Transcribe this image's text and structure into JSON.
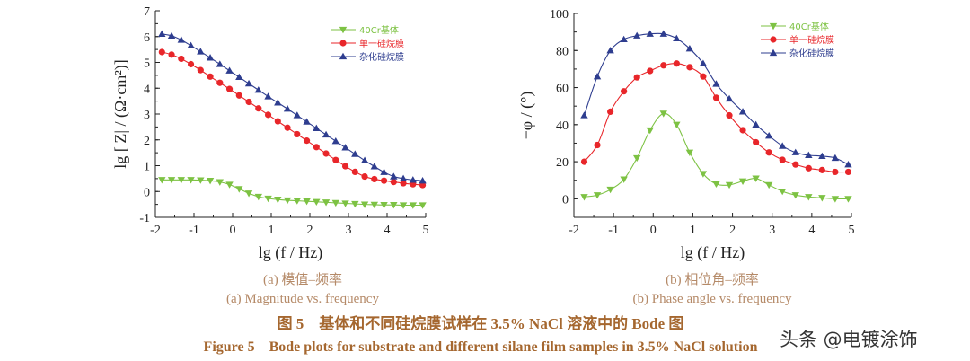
{
  "chart_data": [
    {
      "type": "line",
      "xlabel": "lg (f / Hz)",
      "ylabel": "lg [|Z| / (Ω·cm²)]",
      "xlim": [
        -2,
        5
      ],
      "ylim": [
        -1,
        7
      ],
      "xticks": [
        "-2",
        "-1",
        "0",
        "1",
        "2",
        "3",
        "4",
        "5"
      ],
      "yticks": [
        "-1",
        "0",
        "1",
        "2",
        "3",
        "4",
        "5",
        "6",
        "7"
      ],
      "legend_position": "top-right",
      "caption_cn": "(a)  模值–频率",
      "caption_en": "(a) Magnitude vs. frequency",
      "x": [
        -1.83,
        -1.58,
        -1.33,
        -1.08,
        -0.83,
        -0.58,
        -0.33,
        -0.08,
        0.17,
        0.42,
        0.67,
        0.92,
        1.17,
        1.42,
        1.67,
        1.92,
        2.17,
        2.42,
        2.67,
        2.92,
        3.17,
        3.42,
        3.67,
        3.92,
        4.17,
        4.42,
        4.67,
        4.92
      ],
      "series": [
        {
          "name": "40Cr基体",
          "color": "#7dc243",
          "marker": "triangle-down",
          "values": [
            0.45,
            0.45,
            0.45,
            0.45,
            0.44,
            0.42,
            0.37,
            0.27,
            0.1,
            -0.07,
            -0.2,
            -0.27,
            -0.31,
            -0.34,
            -0.36,
            -0.38,
            -0.4,
            -0.42,
            -0.44,
            -0.46,
            -0.48,
            -0.5,
            -0.51,
            -0.52,
            -0.52,
            -0.53,
            -0.53,
            -0.53
          ]
        },
        {
          "name": "单一硅烷膜",
          "color": "#e8262a",
          "marker": "circle",
          "values": [
            5.4,
            5.3,
            5.14,
            4.93,
            4.7,
            4.45,
            4.21,
            3.97,
            3.72,
            3.47,
            3.22,
            2.97,
            2.72,
            2.47,
            2.22,
            1.97,
            1.72,
            1.47,
            1.22,
            0.98,
            0.76,
            0.58,
            0.48,
            0.42,
            0.37,
            0.32,
            0.28,
            0.25
          ]
        },
        {
          "name": "杂化硅烷膜",
          "color": "#2e3d8f",
          "marker": "triangle-up",
          "values": [
            6.1,
            6.03,
            5.87,
            5.65,
            5.42,
            5.18,
            4.93,
            4.68,
            4.43,
            4.18,
            3.93,
            3.68,
            3.44,
            3.2,
            2.95,
            2.7,
            2.45,
            2.2,
            1.95,
            1.7,
            1.45,
            1.2,
            0.97,
            0.75,
            0.58,
            0.5,
            0.45,
            0.42
          ]
        }
      ]
    },
    {
      "type": "line",
      "xlabel": "lg (f / Hz)",
      "ylabel": "−φ / (°)",
      "xlim": [
        -2,
        5
      ],
      "ylim": [
        -10,
        100
      ],
      "xticks": [
        "-2",
        "-1",
        "0",
        "1",
        "2",
        "3",
        "4",
        "5"
      ],
      "yticks": [
        "0",
        "20",
        "40",
        "60",
        "80",
        "100"
      ],
      "legend_position": "top-right",
      "caption_cn": "(b)  相位角–频率",
      "caption_en": "(b) Phase angle vs. frequency",
      "x": [
        -1.74,
        -1.41,
        -1.08,
        -0.74,
        -0.41,
        -0.08,
        0.26,
        0.59,
        0.92,
        1.26,
        1.59,
        1.92,
        2.26,
        2.59,
        2.92,
        3.26,
        3.59,
        3.92,
        4.26,
        4.59,
        4.92
      ],
      "series": [
        {
          "name": "40Cr基体",
          "color": "#7dc243",
          "marker": "triangle-down",
          "values": [
            1,
            2,
            5,
            10.5,
            22,
            37,
            46,
            40,
            25,
            13.5,
            8,
            7.5,
            9.5,
            11,
            7.5,
            4,
            2,
            1,
            0.5,
            0,
            0
          ]
        },
        {
          "name": "单一硅烷膜",
          "color": "#e8262a",
          "marker": "circle",
          "values": [
            20,
            29,
            47,
            58,
            65.5,
            69,
            72,
            73,
            71,
            66,
            54.5,
            45,
            37,
            30.5,
            25,
            21,
            18.5,
            16.5,
            15.5,
            14.5,
            14.5
          ]
        },
        {
          "name": "杂化硅烷膜",
          "color": "#2e3d8f",
          "marker": "triangle-up",
          "values": [
            45,
            66,
            80,
            86,
            88,
            89,
            89,
            86.5,
            81,
            73,
            62,
            54,
            47,
            40,
            34,
            28.5,
            25,
            23.5,
            23,
            22,
            18.5
          ]
        }
      ]
    }
  ],
  "figure": {
    "title_cn": "图 5　基体和不同硅烷膜试样在 3.5% NaCl 溶液中的 Bode 图",
    "title_en": "Figure 5　Bode plots for substrate and different silane film samples in 3.5% NaCl solution"
  },
  "watermark": "头条 @电镀涂饰"
}
